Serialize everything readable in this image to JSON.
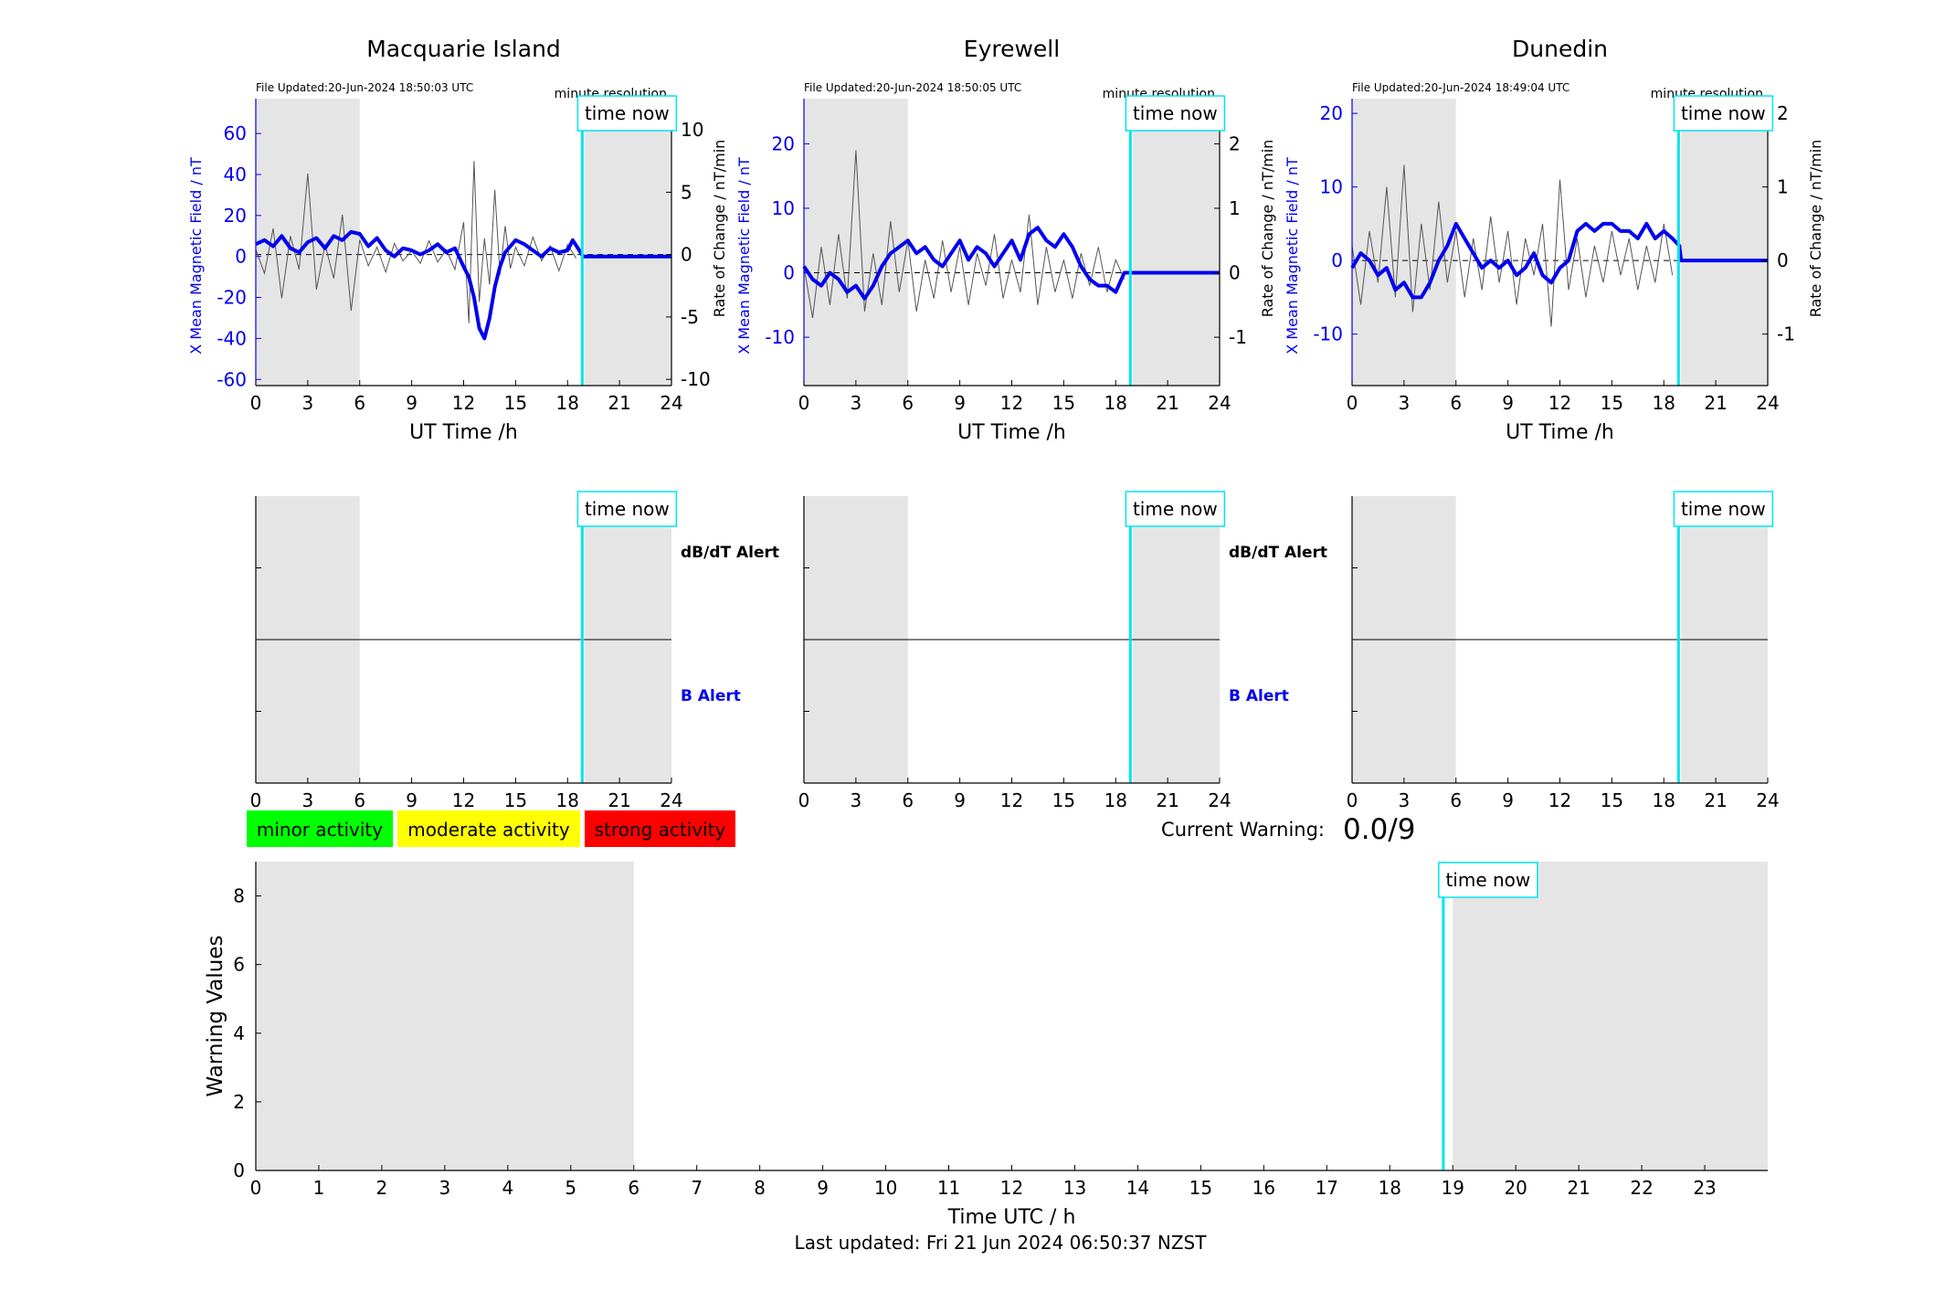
{
  "footer": {
    "last_updated": "Last updated: Fri 21 Jun 2024 06:50:37 NZST"
  },
  "labels": {
    "time_now": "time now",
    "minute_resolution": "minute resolution",
    "dbdt_alert": "dB/dT Alert",
    "b_alert": "B Alert",
    "current_warning_label": "Current Warning:",
    "current_warning_value": "0.0/9"
  },
  "legend": {
    "items": [
      {
        "label": "minor activity",
        "color": "#00ff00"
      },
      {
        "label": "moderate activity",
        "color": "#ffff00"
      },
      {
        "label": "strong activity",
        "color": "#ff0000"
      }
    ]
  },
  "colors": {
    "mean_field": "#0000ee",
    "rate": "#555555",
    "time_now": "#00e5ee",
    "night_shade": "#e5e5e5"
  },
  "chart_data": [
    {
      "type": "line",
      "title": "Macquarie Island",
      "file_updated": "File Updated:20-Jun-2024 18:50:03 UTC",
      "xlabel": "UT Time /h",
      "ylabel_left": "X Mean Magnetic Field / nT",
      "ylabel_right": "Rate of Change / nT/min",
      "xlim": [
        0,
        24
      ],
      "xticks": [
        0,
        3,
        6,
        9,
        12,
        15,
        18,
        21,
        24
      ],
      "ylim_left": [
        -63,
        77
      ],
      "yticks_left": [
        -60,
        -40,
        -20,
        0,
        20,
        40,
        60
      ],
      "ylim_right": [
        -10.5,
        12.5
      ],
      "yticks_right": [
        -10,
        -5,
        0,
        5,
        10
      ],
      "shaded": [
        [
          0,
          6
        ],
        [
          19,
          24
        ]
      ],
      "time_now": 18.85,
      "series": [
        {
          "axis": "left",
          "x": [
            0,
            0.5,
            1,
            1.5,
            2,
            2.5,
            3,
            3.5,
            4,
            4.5,
            5,
            5.5,
            6,
            6.5,
            7,
            7.5,
            8,
            8.5,
            9,
            9.5,
            10,
            10.5,
            11,
            11.5,
            12,
            12.3,
            12.6,
            12.9,
            13.2,
            13.5,
            13.8,
            14.1,
            14.4,
            14.7,
            15,
            15.5,
            16,
            16.5,
            17,
            17.5,
            18,
            18.3,
            18.6,
            18.9,
            19,
            24
          ],
          "y": [
            6,
            8,
            5,
            10,
            4,
            2,
            7,
            9,
            4,
            10,
            8,
            12,
            11,
            5,
            9,
            3,
            0,
            4,
            3,
            1,
            3,
            6,
            2,
            4,
            -5,
            -10,
            -20,
            -35,
            -40,
            -30,
            -15,
            -5,
            2,
            5,
            8,
            6,
            3,
            0,
            4,
            2,
            3,
            8,
            4,
            0,
            0,
            0
          ]
        },
        {
          "axis": "right",
          "x": [
            0,
            0.5,
            1,
            1.5,
            2,
            2.5,
            3,
            3.5,
            4,
            4.5,
            5,
            5.5,
            6,
            6.5,
            7,
            7.5,
            8,
            8.5,
            9,
            9.5,
            10,
            10.5,
            11,
            11.5,
            12,
            12.3,
            12.6,
            12.9,
            13.2,
            13.5,
            13.8,
            14.1,
            14.4,
            14.7,
            15,
            15.5,
            16,
            16.5,
            17,
            17.5,
            18,
            18.5
          ],
          "y": [
            0.4,
            -1.5,
            2.1,
            -3.5,
            1.5,
            -1.2,
            6.5,
            -2.8,
            0.8,
            -1.9,
            3.2,
            -4.5,
            1.2,
            -0.9,
            0.6,
            -1.4,
            0.9,
            -0.5,
            0.3,
            -0.7,
            1.1,
            -0.6,
            0.4,
            -1.2,
            2.6,
            -5.5,
            7.5,
            -3.8,
            1.3,
            -2.4,
            5.2,
            -1.6,
            2.3,
            -1.1,
            0.6,
            -0.9,
            1.4,
            -0.5,
            0.7,
            -1.3,
            0.8,
            -0.3
          ]
        }
      ]
    },
    {
      "type": "line",
      "title": "Eyrewell",
      "file_updated": "File Updated:20-Jun-2024 18:50:05 UTC",
      "xlabel": "UT Time /h",
      "ylabel_left": "X Mean Magnetic Field / nT",
      "ylabel_right": "Rate of Change / nT/min",
      "xlim": [
        0,
        24
      ],
      "xticks": [
        0,
        3,
        6,
        9,
        12,
        15,
        18,
        21,
        24
      ],
      "ylim_left": [
        -17.5,
        27
      ],
      "yticks_left": [
        -10,
        0,
        10,
        20
      ],
      "ylim_right": [
        -1.75,
        2.7
      ],
      "yticks_right": [
        -1,
        0,
        1,
        2
      ],
      "shaded": [
        [
          0,
          6
        ],
        [
          19,
          24
        ]
      ],
      "time_now": 18.85,
      "series": [
        {
          "axis": "left",
          "x": [
            0,
            0.5,
            1,
            1.5,
            2,
            2.5,
            3,
            3.5,
            4,
            4.5,
            5,
            5.5,
            6,
            6.5,
            7,
            7.5,
            8,
            8.5,
            9,
            9.5,
            10,
            10.5,
            11,
            11.5,
            12,
            12.5,
            13,
            13.5,
            14,
            14.5,
            15,
            15.5,
            16,
            16.5,
            17,
            17.5,
            18,
            18.5,
            18.9,
            19,
            24
          ],
          "y": [
            1,
            -1,
            -2,
            0,
            -1,
            -3,
            -2,
            -4,
            -2,
            1,
            3,
            4,
            5,
            3,
            4,
            2,
            1,
            3,
            5,
            2,
            4,
            3,
            1,
            3,
            5,
            2,
            6,
            7,
            5,
            4,
            6,
            4,
            1,
            -1,
            -2,
            -2,
            -3,
            0,
            0,
            0,
            0
          ]
        },
        {
          "axis": "right",
          "x": [
            0,
            0.5,
            1,
            1.5,
            2,
            2.5,
            3,
            3.5,
            4,
            4.5,
            5,
            5.5,
            6,
            6.5,
            7,
            7.5,
            8,
            8.5,
            9,
            9.5,
            10,
            10.5,
            11,
            11.5,
            12,
            12.5,
            13,
            13.5,
            14,
            14.5,
            15,
            15.5,
            16,
            16.5,
            17,
            17.5,
            18,
            18.5
          ],
          "y": [
            0.1,
            -0.7,
            0.4,
            -0.5,
            0.6,
            -0.4,
            1.9,
            -0.6,
            0.3,
            -0.5,
            0.8,
            -0.3,
            0.5,
            -0.6,
            0.2,
            -0.4,
            0.5,
            -0.3,
            0.4,
            -0.5,
            0.3,
            -0.2,
            0.6,
            -0.4,
            0.2,
            -0.3,
            0.9,
            -0.5,
            0.4,
            -0.3,
            0.2,
            -0.4,
            0.3,
            -0.2,
            0.4,
            -0.3,
            0.2,
            -0.1
          ]
        }
      ]
    },
    {
      "type": "line",
      "title": "Dunedin",
      "file_updated": "File Updated:20-Jun-2024 18:49:04 UTC",
      "xlabel": "UT Time /h",
      "ylabel_left": "X Mean Magnetic Field / nT",
      "ylabel_right": "Rate of Change / nT/min",
      "xlim": [
        0,
        24
      ],
      "xticks": [
        0,
        3,
        6,
        9,
        12,
        15,
        18,
        21,
        24
      ],
      "ylim_left": [
        -17,
        22
      ],
      "yticks_left": [
        -10,
        0,
        10,
        20
      ],
      "ylim_right": [
        -1.7,
        2.2
      ],
      "yticks_right": [
        -1,
        0,
        1,
        2
      ],
      "shaded": [
        [
          0,
          6
        ],
        [
          19,
          24
        ]
      ],
      "time_now": 18.85,
      "series": [
        {
          "axis": "left",
          "x": [
            0,
            0.5,
            1,
            1.5,
            2,
            2.5,
            3,
            3.5,
            4,
            4.5,
            5,
            5.5,
            6,
            6.5,
            7,
            7.5,
            8,
            8.5,
            9,
            9.5,
            10,
            10.5,
            11,
            11.5,
            12,
            12.5,
            13,
            13.5,
            14,
            14.5,
            15,
            15.5,
            16,
            16.5,
            17,
            17.5,
            18,
            18.5,
            18.9,
            19,
            24
          ],
          "y": [
            -1,
            1,
            0,
            -2,
            -1,
            -4,
            -3,
            -5,
            -5,
            -3,
            0,
            2,
            5,
            3,
            1,
            -1,
            0,
            -1,
            0,
            -2,
            -1,
            1,
            -2,
            -3,
            -1,
            0,
            4,
            5,
            4,
            5,
            5,
            4,
            4,
            3,
            5,
            3,
            4,
            3,
            2,
            0,
            0
          ]
        },
        {
          "axis": "right",
          "x": [
            0,
            0.5,
            1,
            1.5,
            2,
            2.5,
            3,
            3.5,
            4,
            4.5,
            5,
            5.5,
            6,
            6.5,
            7,
            7.5,
            8,
            8.5,
            9,
            9.5,
            10,
            10.5,
            11,
            11.5,
            12,
            12.5,
            13,
            13.5,
            14,
            14.5,
            15,
            15.5,
            16,
            16.5,
            17,
            17.5,
            18,
            18.5
          ],
          "y": [
            0.2,
            -0.6,
            0.4,
            -0.3,
            1.0,
            -0.5,
            1.3,
            -0.7,
            0.5,
            -0.4,
            0.8,
            -0.3,
            0.4,
            -0.5,
            0.3,
            -0.4,
            0.6,
            -0.3,
            0.4,
            -0.6,
            0.3,
            -0.2,
            0.5,
            -0.9,
            1.1,
            -0.4,
            0.3,
            -0.5,
            0.2,
            -0.3,
            0.4,
            -0.2,
            0.3,
            -0.4,
            0.2,
            -0.3,
            0.5,
            -0.2
          ]
        }
      ]
    },
    {
      "type": "line",
      "title": "",
      "xlabel": "Time UTC / h",
      "ylabel": "Warning Values",
      "xlim": [
        0,
        24
      ],
      "xticks": [
        0,
        1,
        2,
        3,
        4,
        5,
        6,
        7,
        8,
        9,
        10,
        11,
        12,
        13,
        14,
        15,
        16,
        17,
        18,
        19,
        20,
        21,
        22,
        23
      ],
      "ylim": [
        0,
        9
      ],
      "yticks": [
        0,
        2,
        4,
        6,
        8
      ],
      "shaded": [
        [
          0,
          6
        ],
        [
          19,
          24
        ]
      ],
      "time_now": 18.85,
      "series": []
    }
  ]
}
